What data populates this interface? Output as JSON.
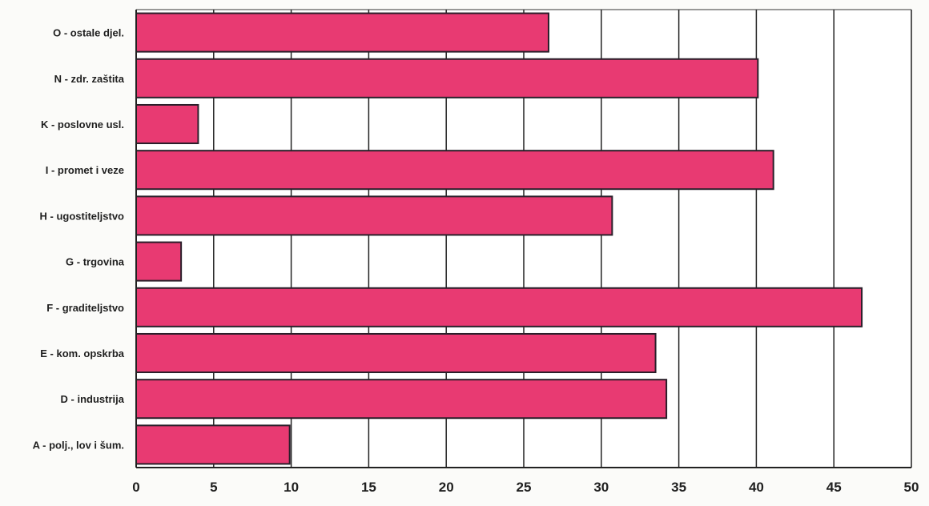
{
  "chart_data": {
    "type": "bar",
    "orientation": "horizontal",
    "categories": [
      "O - ostale djel.",
      "N - zdr. zaštita",
      "K - poslovne usl.",
      "I - promet i veze",
      "H - ugostiteljstvo",
      "G - trgovina",
      "F - graditeljstvo",
      "E - kom. opskrba",
      "D - industrija",
      "A - polj., lov i šum."
    ],
    "values": [
      26.6,
      40.1,
      4.0,
      41.1,
      30.7,
      2.9,
      46.8,
      33.5,
      34.2,
      9.9
    ],
    "xlim": [
      0,
      50
    ],
    "xticks": [
      0,
      5,
      10,
      15,
      20,
      25,
      30,
      35,
      40,
      45,
      50
    ],
    "grid": "vertical",
    "title": "",
    "xlabel": "",
    "ylabel": "",
    "bar_color": "#e83a72",
    "bar_edge_color": "#2a1f2a",
    "grid_color": "#222222"
  }
}
